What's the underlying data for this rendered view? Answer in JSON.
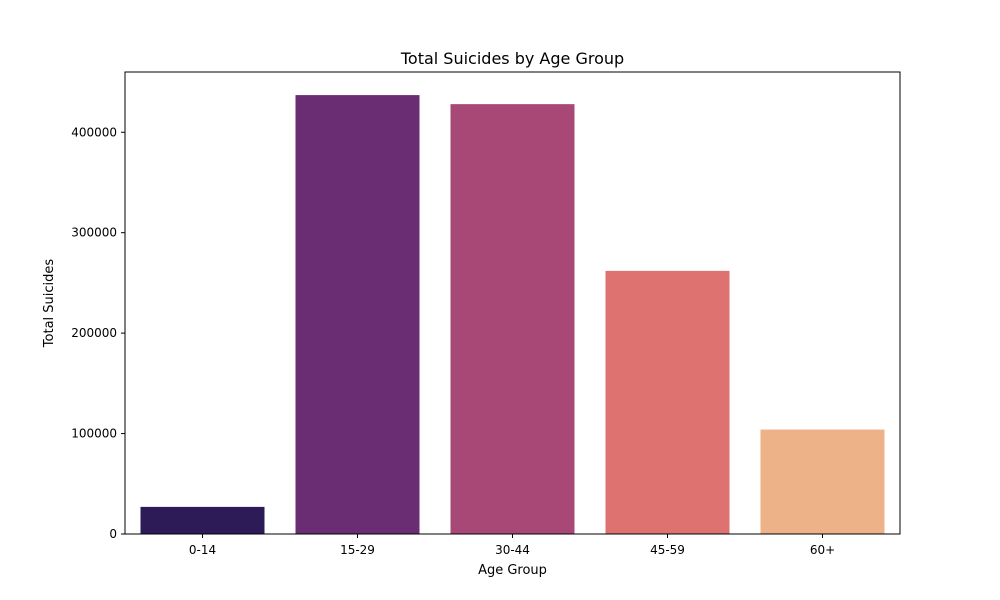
{
  "chart_data": {
    "type": "bar",
    "title": "Total Suicides by Age Group",
    "xlabel": "Age Group",
    "ylabel": "Total Suicides",
    "categories": [
      "0-14",
      "15-29",
      "30-44",
      "45-59",
      "60+"
    ],
    "values": [
      27000,
      437000,
      428000,
      262000,
      104000
    ],
    "colors": [
      "#2d1b57",
      "#6a2c73",
      "#a84877",
      "#de7270",
      "#edb287"
    ],
    "ylim": [
      0,
      460000
    ],
    "yticks": [
      0,
      100000,
      200000,
      300000,
      400000
    ],
    "ytick_labels": [
      "0",
      "100000",
      "200000",
      "300000",
      "400000"
    ],
    "grid": false,
    "legend": "none"
  }
}
